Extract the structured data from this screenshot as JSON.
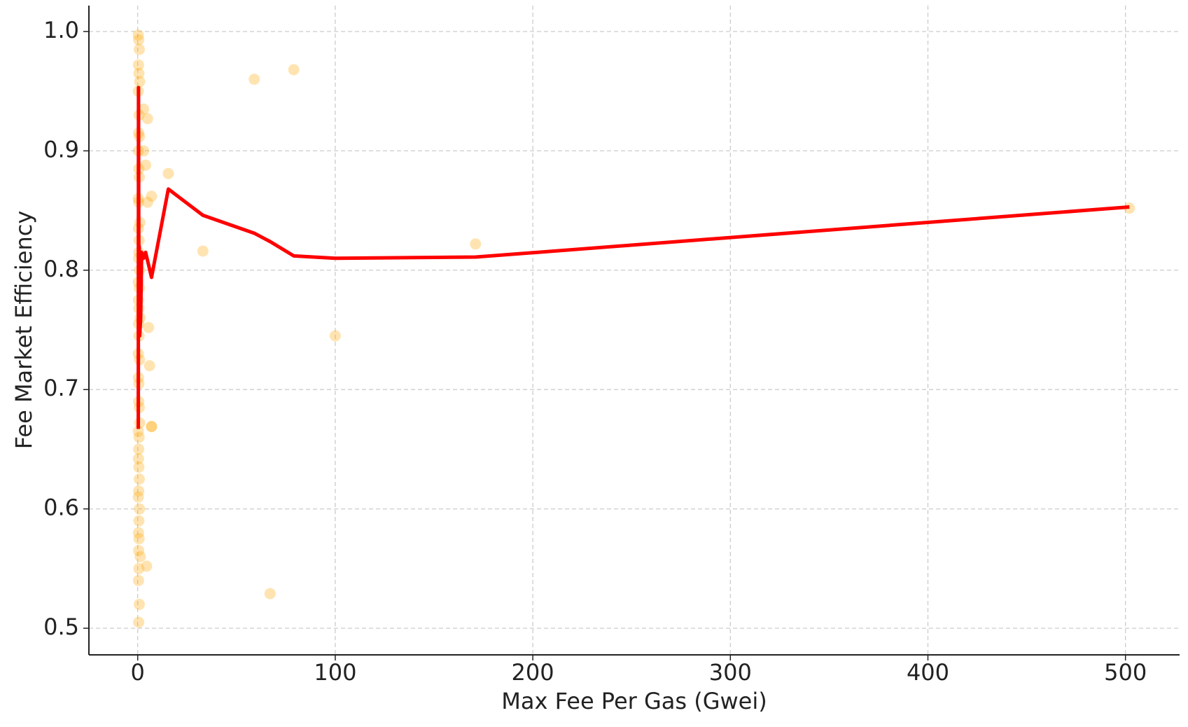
{
  "chart_data": {
    "type": "scatter",
    "x_label": "Max Fee Per Gas (Gwei)",
    "y_label": "Fee Market Efficiency",
    "xlim": [
      -24.7,
      527.4
    ],
    "ylim": [
      0.4777,
      1.0217
    ],
    "xticks": [
      0,
      100,
      200,
      300,
      400,
      500
    ],
    "yticks": [
      0.5,
      0.6,
      0.7,
      0.8,
      0.9,
      {
        "value": 1,
        "label": "1.0"
      }
    ],
    "grid": true,
    "series": [
      {
        "type": "scatter",
        "color": "#ffa500",
        "x": [
          0.3,
          0.5,
          0.8,
          0.4,
          0.6,
          1.0,
          0.3,
          0.7,
          0.5,
          0.9,
          0.4,
          0.6,
          0.8,
          0.3,
          0.5,
          1.1,
          0.4,
          0.7,
          0.6,
          0.5,
          0.9,
          0.3,
          0.8,
          0.4,
          0.6,
          1.2,
          0.5,
          0.7,
          0.3,
          0.9,
          0.4,
          0.6,
          0.5,
          0.8,
          1.0,
          0.3,
          0.7,
          0.5,
          0.4,
          0.6,
          0.8,
          0.5,
          0.3,
          0.9,
          0.6,
          0.4,
          0.7,
          0.5,
          1.3,
          0.6,
          0.4,
          0.8,
          0.5,
          3,
          3,
          4,
          5,
          5,
          7,
          7,
          5.5,
          6,
          7,
          4.5,
          15.5,
          33,
          59,
          79,
          171,
          100,
          67,
          502
        ],
        "values": [
          0.997,
          0.993,
          0.985,
          0.972,
          0.965,
          0.958,
          0.95,
          0.93,
          0.915,
          0.912,
          0.9,
          0.885,
          0.878,
          0.86,
          0.857,
          0.84,
          0.835,
          0.825,
          0.815,
          0.81,
          0.8,
          0.79,
          0.785,
          0.775,
          0.768,
          0.76,
          0.755,
          0.745,
          0.73,
          0.725,
          0.71,
          0.705,
          0.69,
          0.685,
          0.672,
          0.665,
          0.66,
          0.65,
          0.642,
          0.635,
          0.625,
          0.615,
          0.61,
          0.6,
          0.59,
          0.58,
          0.575,
          0.565,
          0.56,
          0.55,
          0.54,
          0.52,
          0.505,
          0.935,
          0.9,
          0.888,
          0.927,
          0.857,
          0.862,
          0.669,
          0.752,
          0.72,
          0.669,
          0.552,
          0.881,
          0.816,
          0.96,
          0.968,
          0.822,
          0.745,
          0.529,
          0.852
        ]
      },
      {
        "type": "line",
        "color": "#ff0000",
        "x": [
          0.3,
          0.4,
          0.6,
          0.8,
          1,
          1.5,
          2,
          3,
          4,
          7,
          15.5,
          33,
          59,
          67,
          79,
          100,
          171,
          502
        ],
        "values": [
          0.667,
          0.953,
          0.78,
          0.82,
          0.745,
          0.76,
          0.815,
          0.81,
          0.815,
          0.794,
          0.868,
          0.846,
          0.831,
          0.824,
          0.812,
          0.81,
          0.811,
          0.853
        ]
      }
    ]
  }
}
